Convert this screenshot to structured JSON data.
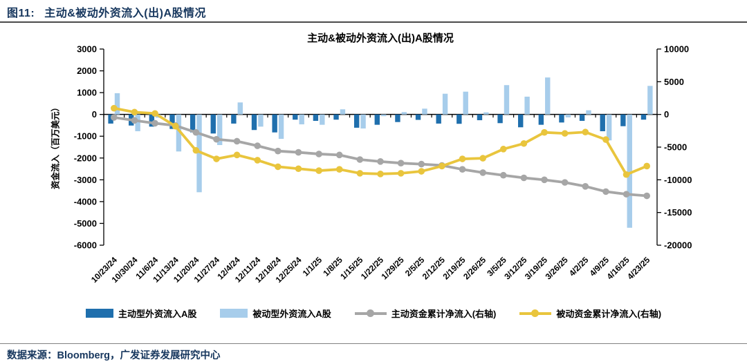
{
  "header": {
    "figure_label": "图11:",
    "figure_title": "主动&被动外资流入(出)A股情况"
  },
  "footer": {
    "source_text": "数据来源：Bloomberg，广发证券发展研究中心"
  },
  "colors": {
    "header_text": "#17375E",
    "active_bar": "#1F6FAD",
    "passive_bar": "#A7CDEB",
    "active_line": "#A6A6A6",
    "passive_line": "#E9C53D"
  },
  "chart_data": {
    "type": "bar",
    "title": "主动&被动外资流入(出)A股情况",
    "legend_position": "bottom",
    "grid": false,
    "categories": [
      "10/23/24",
      "10/30/24",
      "11/6/24",
      "11/13/24",
      "11/20/24",
      "11/27/24",
      "12/4/24",
      "12/11/24",
      "12/18/24",
      "12/25/24",
      "1/1/25",
      "1/8/25",
      "1/15/25",
      "1/22/25",
      "1/29/25",
      "2/5/25",
      "2/12/25",
      "2/19/25",
      "2/26/25",
      "3/5/25",
      "3/12/25",
      "3/19/25",
      "3/26/25",
      "4/2/25",
      "4/9/25",
      "4/16/25",
      "4/23/25"
    ],
    "series": [
      {
        "name": "主动型外资流入A股",
        "kind": "bar",
        "axis": "left",
        "color": "#1F6FAD",
        "values": [
          -420,
          -510,
          -560,
          -665,
          -825,
          -875,
          -420,
          -715,
          -825,
          -240,
          -295,
          -240,
          -610,
          -475,
          -350,
          -250,
          -420,
          -430,
          -265,
          -400,
          -590,
          -475,
          -370,
          -295,
          -770,
          -540,
          -240
        ]
      },
      {
        "name": "被动型外资流入A股",
        "kind": "bar",
        "axis": "left",
        "color": "#A7CDEB",
        "values": [
          975,
          -770,
          -150,
          -1700,
          -3570,
          -1405,
          550,
          -560,
          -1120,
          -455,
          -475,
          235,
          -645,
          -80,
          105,
          265,
          950,
          1045,
          95,
          1345,
          815,
          1695,
          -135,
          190,
          -1190,
          -5200,
          1310
        ]
      },
      {
        "name": "主动资金累计净流入(右轴)",
        "kind": "line",
        "axis": "right",
        "color": "#A6A6A6",
        "values": [
          -460,
          -915,
          -1350,
          -1700,
          -2750,
          -3800,
          -4100,
          -4800,
          -5600,
          -5800,
          -6050,
          -6200,
          -6900,
          -7200,
          -7450,
          -7600,
          -7800,
          -8400,
          -8900,
          -9300,
          -9700,
          -10000,
          -10400,
          -11000,
          -11800,
          -12200,
          -12450
        ]
      },
      {
        "name": "被动资金累计净流入(右轴)",
        "kind": "line",
        "axis": "right",
        "color": "#E9C53D",
        "values": [
          950,
          350,
          150,
          -1800,
          -5500,
          -6800,
          -6200,
          -7000,
          -8000,
          -8300,
          -8600,
          -8400,
          -9000,
          -9100,
          -9000,
          -8700,
          -7900,
          -6800,
          -6700,
          -5300,
          -4450,
          -2750,
          -2900,
          -2700,
          -3850,
          -9200,
          -7900
        ]
      }
    ],
    "left_axis": {
      "label": "资金流入（百万美元）",
      "min": -6000,
      "max": 3000,
      "step": 1000,
      "tick_labels": [
        "3000",
        "2000",
        "1000",
        "0",
        "-1000",
        "-2000",
        "-3000",
        "-4000",
        "-5000",
        "-6000"
      ]
    },
    "right_axis": {
      "min": -20000,
      "max": 10000,
      "step": 5000,
      "tick_labels": [
        "10000",
        "5000",
        "0",
        "-5000",
        "-10000",
        "-15000",
        "-20000"
      ]
    }
  }
}
